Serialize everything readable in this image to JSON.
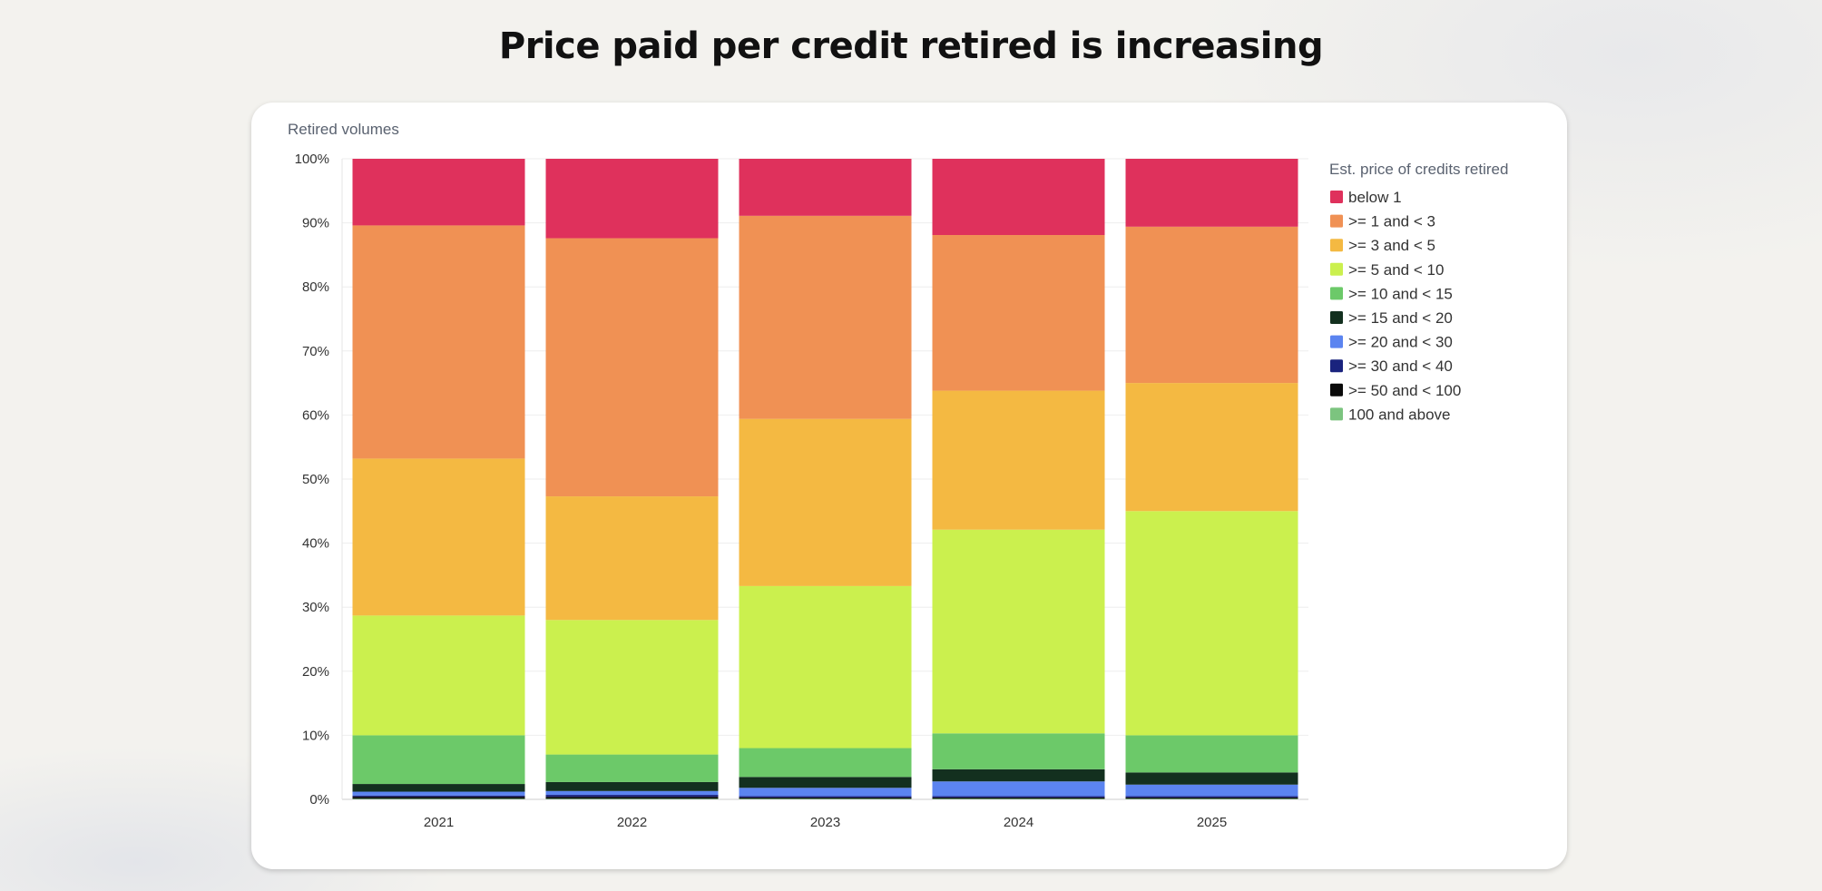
{
  "page": {
    "title": "Price paid per credit retired is increasing"
  },
  "chart_data": {
    "type": "bar",
    "stacked": true,
    "normalized": true,
    "ylabel": "Retired volumes",
    "ylim": [
      0,
      100
    ],
    "yticks": [
      "0%",
      "10%",
      "20%",
      "30%",
      "40%",
      "50%",
      "60%",
      "70%",
      "80%",
      "90%",
      "100%"
    ],
    "grid": true,
    "legend_title": "Est. price of credits retired",
    "legend_position": "right",
    "categories": [
      "2021",
      "2022",
      "2023",
      "2024",
      "2025"
    ],
    "series": [
      {
        "name": "100 and above",
        "color": "#7cc47f",
        "values": [
          0.1,
          0.1,
          0.1,
          0.1,
          0.1
        ]
      },
      {
        "name": ">= 50 and < 100",
        "color": "#0a0a0a",
        "values": [
          0.3,
          0.3,
          0.2,
          0.2,
          0.2
        ]
      },
      {
        "name": ">= 30 and < 40",
        "color": "#1a237e",
        "values": [
          0.2,
          0.3,
          0.2,
          0.2,
          0.2
        ]
      },
      {
        "name": ">= 20 and < 30",
        "color": "#5b84f0",
        "values": [
          0.6,
          0.6,
          1.3,
          2.3,
          1.8
        ]
      },
      {
        "name": ">= 15 and < 20",
        "color": "#13301f",
        "values": [
          1.2,
          1.4,
          1.7,
          1.9,
          1.9
        ]
      },
      {
        "name": ">= 10 and < 15",
        "color": "#6cc969",
        "values": [
          7.6,
          4.3,
          4.5,
          5.6,
          5.8
        ]
      },
      {
        "name": ">= 5 and < 10",
        "color": "#cbf04e",
        "values": [
          18.7,
          21.0,
          25.3,
          31.8,
          35.0
        ]
      },
      {
        "name": ">= 3 and < 5",
        "color": "#f4b942",
        "values": [
          24.5,
          19.3,
          26.1,
          21.7,
          20.0
        ]
      },
      {
        "name": ">= 1 and < 3",
        "color": "#f09154",
        "values": [
          36.4,
          40.3,
          31.7,
          24.3,
          24.4
        ]
      },
      {
        "name": "below 1",
        "color": "#df315c",
        "values": [
          10.4,
          12.4,
          8.9,
          11.9,
          10.6
        ]
      }
    ],
    "legend_order": [
      "below 1",
      ">= 1 and < 3",
      ">= 3 and < 5",
      ">= 5 and < 10",
      ">= 10 and < 15",
      ">= 15 and < 20",
      ">= 20 and < 30",
      ">= 30 and < 40",
      ">= 50 and < 100",
      "100 and above"
    ]
  }
}
